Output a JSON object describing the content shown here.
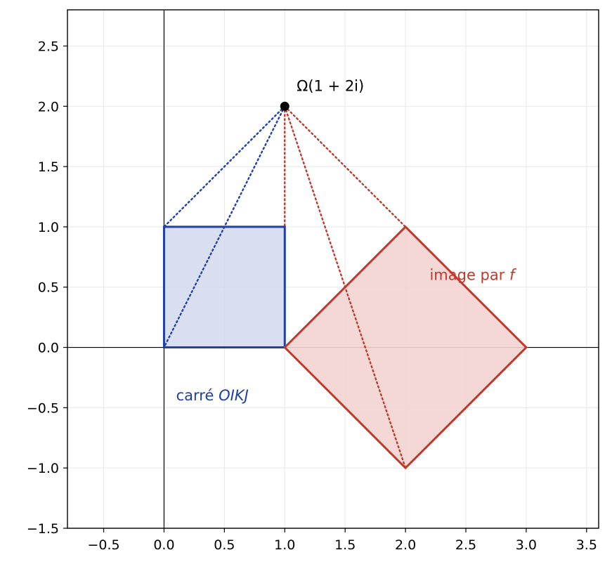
{
  "chart_data": {
    "type": "scatter",
    "title": "",
    "xlabel": "",
    "ylabel": "",
    "xlim": [
      -0.8,
      3.6
    ],
    "ylim": [
      -1.5,
      2.8
    ],
    "grid": true,
    "xticks": [
      -0.5,
      0.0,
      0.5,
      1.0,
      1.5,
      2.0,
      2.5,
      3.0,
      3.5
    ],
    "yticks": [
      -1.5,
      -1.0,
      -0.5,
      0.0,
      0.5,
      1.0,
      1.5,
      2.0,
      2.5
    ],
    "xtick_labels": [
      "−0.5",
      "0.0",
      "0.5",
      "1.0",
      "1.5",
      "2.0",
      "2.5",
      "3.0",
      "3.5"
    ],
    "ytick_labels": [
      "−1.5",
      "−1.0",
      "−0.5",
      "0.0",
      "0.5",
      "1.0",
      "1.5",
      "2.0",
      "2.5"
    ],
    "colors": {
      "blue": "#2040a8",
      "blue_fill": "#d2d8ef",
      "red": "#c0392b",
      "red_fill": "#f2d4d1",
      "point": "#000000"
    },
    "center": {
      "x": 1,
      "y": 2,
      "label": "Ω(1 + 2i)"
    },
    "square": {
      "label_text": "carré ",
      "label_math": "OIKJ",
      "label_pos": [
        0.1,
        -0.4
      ],
      "vertices": [
        [
          0,
          0
        ],
        [
          1,
          0
        ],
        [
          1,
          1
        ],
        [
          0,
          1
        ]
      ]
    },
    "image": {
      "label_text": "image par ",
      "label_math": "f",
      "label_pos": [
        2.2,
        0.6
      ],
      "vertices": [
        [
          1,
          0
        ],
        [
          3,
          0
        ],
        [
          2,
          1
        ],
        [
          2,
          -1
        ]
      ],
      "polygon_order": [
        [
          1,
          0
        ],
        [
          2,
          -1
        ],
        [
          3,
          0
        ],
        [
          2,
          1
        ]
      ]
    }
  }
}
